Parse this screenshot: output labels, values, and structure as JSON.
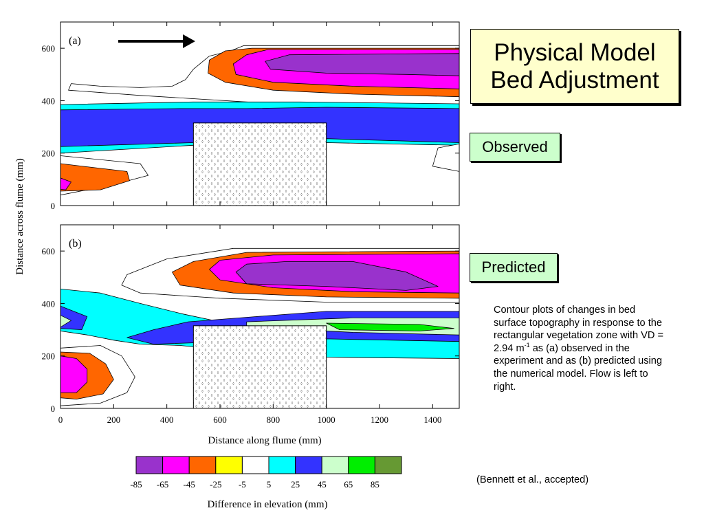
{
  "title_line1": "Physical Model",
  "title_line2": "Bed Adjustment",
  "label_observed": "Observed",
  "label_predicted": "Predicted",
  "caption": {
    "part1": "Contour plots of changes in bed surface topography in response to the rectangular vegetation zone with VD = 2.94 m",
    "sup": "-1",
    "part2": " as (a) observed in the experiment and as (b) predicted using the numerical model.  Flow is left to right."
  },
  "credit": "(Bennett et al., accepted)",
  "chart_data": {
    "type": "contour",
    "xlabel": "Distance along flume (mm)",
    "ylabel": "Distance across flume (mm)",
    "xlim": [
      0,
      1500
    ],
    "ylim": [
      0,
      700
    ],
    "x_ticks": [
      0,
      200,
      400,
      600,
      800,
      1000,
      1200,
      1400
    ],
    "y_ticks": [
      0,
      200,
      400,
      600
    ],
    "flow_direction": "left to right",
    "vegetation_zone": {
      "x": [
        500,
        1000
      ],
      "y": [
        0,
        315
      ]
    },
    "panels": [
      {
        "label": "(a)",
        "name": "Observed",
        "regions": [
          {
            "bin": 4,
            "pts": [
              [
                1500,
                610
              ],
              [
                690,
                610
              ],
              [
                640,
                590
              ],
              [
                560,
                570
              ],
              [
                500,
                520
              ],
              [
                470,
                480
              ],
              [
                420,
                455
              ],
              [
                300,
                450
              ],
              [
                150,
                455
              ],
              [
                40,
                465
              ],
              [
                30,
                440
              ],
              [
                300,
                420
              ],
              [
                700,
                395
              ],
              [
                1000,
                380
              ],
              [
                1500,
                375
              ]
            ]
          },
          {
            "bin": 2,
            "pts": [
              [
                1500,
                600
              ],
              [
                720,
                600
              ],
              [
                620,
                590
              ],
              [
                560,
                555
              ],
              [
                555,
                505
              ],
              [
                620,
                470
              ],
              [
                800,
                440
              ],
              [
                1100,
                425
              ],
              [
                1500,
                415
              ]
            ]
          },
          {
            "bin": 1,
            "pts": [
              [
                1500,
                595
              ],
              [
                780,
                595
              ],
              [
                700,
                575
              ],
              [
                650,
                540
              ],
              [
                660,
                500
              ],
              [
                800,
                470
              ],
              [
                1100,
                455
              ],
              [
                1500,
                445
              ]
            ]
          },
          {
            "bin": 0,
            "pts": [
              [
                1500,
                580
              ],
              [
                860,
                575
              ],
              [
                770,
                550
              ],
              [
                790,
                520
              ],
              [
                1000,
                505
              ],
              [
                1300,
                500
              ],
              [
                1500,
                495
              ]
            ]
          },
          {
            "bin": 5,
            "pts": [
              [
                0,
                385
              ],
              [
                500,
                395
              ],
              [
                900,
                395
              ],
              [
                1500,
                388
              ],
              [
                1500,
                230
              ],
              [
                1000,
                240
              ],
              [
                500,
                230
              ],
              [
                0,
                200
              ]
            ]
          },
          {
            "bin": 6,
            "pts": [
              [
                0,
                365
              ],
              [
                450,
                370
              ],
              [
                700,
                370
              ],
              [
                1000,
                375
              ],
              [
                1500,
                370
              ],
              [
                1500,
                240
              ],
              [
                1000,
                255
              ],
              [
                700,
                250
              ],
              [
                500,
                240
              ],
              [
                0,
                225
              ]
            ]
          },
          {
            "bin": 4,
            "pts": [
              [
                0,
                190
              ],
              [
                300,
                160
              ],
              [
                330,
                115
              ],
              [
                200,
                80
              ],
              [
                0,
                40
              ]
            ]
          },
          {
            "bin": 2,
            "pts": [
              [
                0,
                160
              ],
              [
                250,
                130
              ],
              [
                260,
                95
              ],
              [
                150,
                60
              ],
              [
                0,
                55
              ]
            ]
          },
          {
            "bin": 1,
            "pts": [
              [
                0,
                105
              ],
              [
                40,
                90
              ],
              [
                20,
                60
              ],
              [
                0,
                62
              ]
            ]
          },
          {
            "bin": 4,
            "pts": [
              [
                1500,
                235
              ],
              [
                1420,
                220
              ],
              [
                1400,
                150
              ],
              [
                1500,
                130
              ]
            ]
          }
        ]
      },
      {
        "label": "(b)",
        "name": "Predicted",
        "regions": [
          {
            "bin": 5,
            "pts": [
              [
                0,
                455
              ],
              [
                150,
                440
              ],
              [
                300,
                400
              ],
              [
                460,
                360
              ],
              [
                600,
                330
              ],
              [
                1000,
                335
              ],
              [
                1500,
                335
              ],
              [
                1500,
                190
              ],
              [
                1000,
                195
              ],
              [
                700,
                215
              ],
              [
                450,
                240
              ],
              [
                300,
                245
              ],
              [
                200,
                260
              ],
              [
                100,
                280
              ],
              [
                0,
                295
              ]
            ]
          },
          {
            "bin": 6,
            "pts": [
              [
                0,
                390
              ],
              [
                100,
                350
              ],
              [
                80,
                300
              ],
              [
                0,
                305
              ]
            ]
          },
          {
            "bin": 7,
            "pts": [
              [
                0,
                355
              ],
              [
                40,
                335
              ],
              [
                0,
                310
              ]
            ]
          },
          {
            "bin": 6,
            "pts": [
              [
                480,
                330
              ],
              [
                800,
                355
              ],
              [
                1000,
                370
              ],
              [
                1500,
                370
              ],
              [
                1500,
                255
              ],
              [
                1000,
                265
              ],
              [
                700,
                255
              ],
              [
                500,
                250
              ],
              [
                350,
                245
              ],
              [
                250,
                270
              ],
              [
                350,
                300
              ]
            ]
          },
          {
            "bin": 7,
            "pts": [
              [
                700,
                330
              ],
              [
                1100,
                345
              ],
              [
                1500,
                345
              ],
              [
                1500,
                280
              ],
              [
                1100,
                290
              ],
              [
                800,
                305
              ],
              [
                700,
                315
              ]
            ]
          },
          {
            "bin": 8,
            "pts": [
              [
                1000,
                325
              ],
              [
                1350,
                320
              ],
              [
                1480,
                305
              ],
              [
                1350,
                295
              ],
              [
                1050,
                300
              ]
            ]
          },
          {
            "bin": 4,
            "pts": [
              [
                1500,
                610
              ],
              [
                650,
                610
              ],
              [
                400,
                570
              ],
              [
                250,
                510
              ],
              [
                230,
                470
              ],
              [
                300,
                440
              ],
              [
                600,
                420
              ],
              [
                1000,
                405
              ],
              [
                1500,
                405
              ]
            ]
          },
          {
            "bin": 2,
            "pts": [
              [
                1500,
                600
              ],
              [
                700,
                595
              ],
              [
                500,
                560
              ],
              [
                420,
                520
              ],
              [
                450,
                470
              ],
              [
                650,
                440
              ],
              [
                1000,
                425
              ],
              [
                1500,
                420
              ]
            ]
          },
          {
            "bin": 1,
            "pts": [
              [
                1500,
                590
              ],
              [
                800,
                585
              ],
              [
                600,
                565
              ],
              [
                560,
                530
              ],
              [
                600,
                490
              ],
              [
                800,
                460
              ],
              [
                1100,
                445
              ],
              [
                1500,
                440
              ]
            ]
          },
          {
            "bin": 0,
            "pts": [
              [
                1300,
                450
              ],
              [
                1000,
                465
              ],
              [
                700,
                475
              ],
              [
                660,
                520
              ],
              [
                700,
                550
              ],
              [
                850,
                560
              ],
              [
                1100,
                560
              ],
              [
                1300,
                520
              ],
              [
                1420,
                465
              ]
            ]
          },
          {
            "bin": 4,
            "pts": [
              [
                0,
                230
              ],
              [
                150,
                240
              ],
              [
                230,
                200
              ],
              [
                280,
                120
              ],
              [
                250,
                60
              ],
              [
                150,
                20
              ],
              [
                0,
                10
              ]
            ]
          },
          {
            "bin": 2,
            "pts": [
              [
                0,
                215
              ],
              [
                110,
                210
              ],
              [
                170,
                170
              ],
              [
                200,
                110
              ],
              [
                160,
                55
              ],
              [
                60,
                35
              ],
              [
                0,
                40
              ]
            ]
          },
          {
            "bin": 1,
            "pts": [
              [
                0,
                200
              ],
              [
                60,
                190
              ],
              [
                100,
                150
              ],
              [
                100,
                100
              ],
              [
                60,
                60
              ],
              [
                0,
                60
              ]
            ]
          }
        ]
      }
    ],
    "colorbar": {
      "title": "Difference in elevation (mm)",
      "tick_labels": [
        "-85",
        "-65",
        "-45",
        "-25",
        "-5",
        "5",
        "25",
        "45",
        "65",
        "85"
      ],
      "colors": [
        "#9932cc",
        "#ff00ff",
        "#ff6600",
        "#ffff00",
        "#ffffff",
        "#00ffff",
        "#3333ff",
        "#ccffcc",
        "#00ee00",
        "#669933"
      ]
    }
  }
}
